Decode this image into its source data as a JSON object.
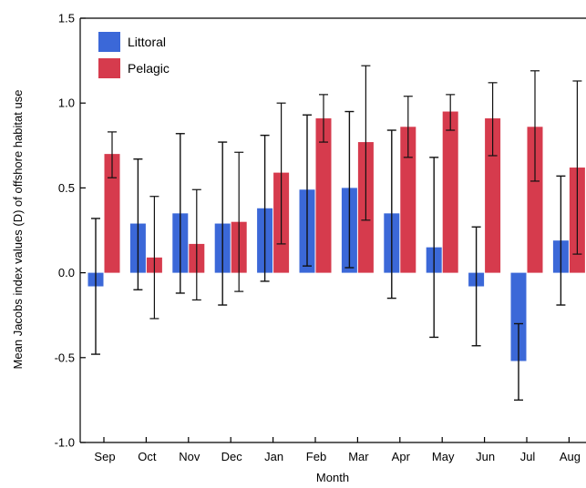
{
  "chart_data": {
    "type": "bar",
    "xlabel": "Month",
    "ylabel": "Mean Jacobs index values (D) of offshore habitat use",
    "ylim": [
      -1.0,
      1.5
    ],
    "yticks": [
      -1.0,
      -0.5,
      0.0,
      0.5,
      1.0,
      1.5
    ],
    "ytick_labels": [
      "-1.0",
      "-0.5",
      "0.0",
      "0.5",
      "1.0",
      "1.5"
    ],
    "categories": [
      "Sep",
      "Oct",
      "Nov",
      "Dec",
      "Jan",
      "Feb",
      "Mar",
      "Apr",
      "May",
      "Jun",
      "Jul",
      "Aug"
    ],
    "legend_position": "top-left",
    "grid": false,
    "series": [
      {
        "name": "Littoral",
        "color": "#3b68d8",
        "values": [
          -0.08,
          0.29,
          0.35,
          0.29,
          0.38,
          0.49,
          0.5,
          0.35,
          0.15,
          -0.08,
          -0.52,
          0.19
        ],
        "err_low": [
          -0.48,
          -0.1,
          -0.12,
          -0.19,
          -0.05,
          0.04,
          0.03,
          -0.15,
          -0.38,
          -0.43,
          -0.75,
          -0.19
        ],
        "err_high": [
          0.32,
          0.67,
          0.82,
          0.77,
          0.81,
          0.93,
          0.95,
          0.84,
          0.68,
          0.27,
          -0.3,
          0.57
        ]
      },
      {
        "name": "Pelagic",
        "color": "#d63b4d",
        "values": [
          0.7,
          0.09,
          0.17,
          0.3,
          0.59,
          0.91,
          0.77,
          0.86,
          0.95,
          0.91,
          0.86,
          0.62
        ],
        "err_low": [
          0.56,
          -0.27,
          -0.16,
          -0.11,
          0.17,
          0.77,
          0.31,
          0.68,
          0.84,
          0.69,
          0.54,
          0.11
        ],
        "err_high": [
          0.83,
          0.45,
          0.49,
          0.71,
          1.0,
          1.05,
          1.22,
          1.04,
          1.05,
          1.12,
          1.19,
          1.13
        ]
      }
    ]
  }
}
